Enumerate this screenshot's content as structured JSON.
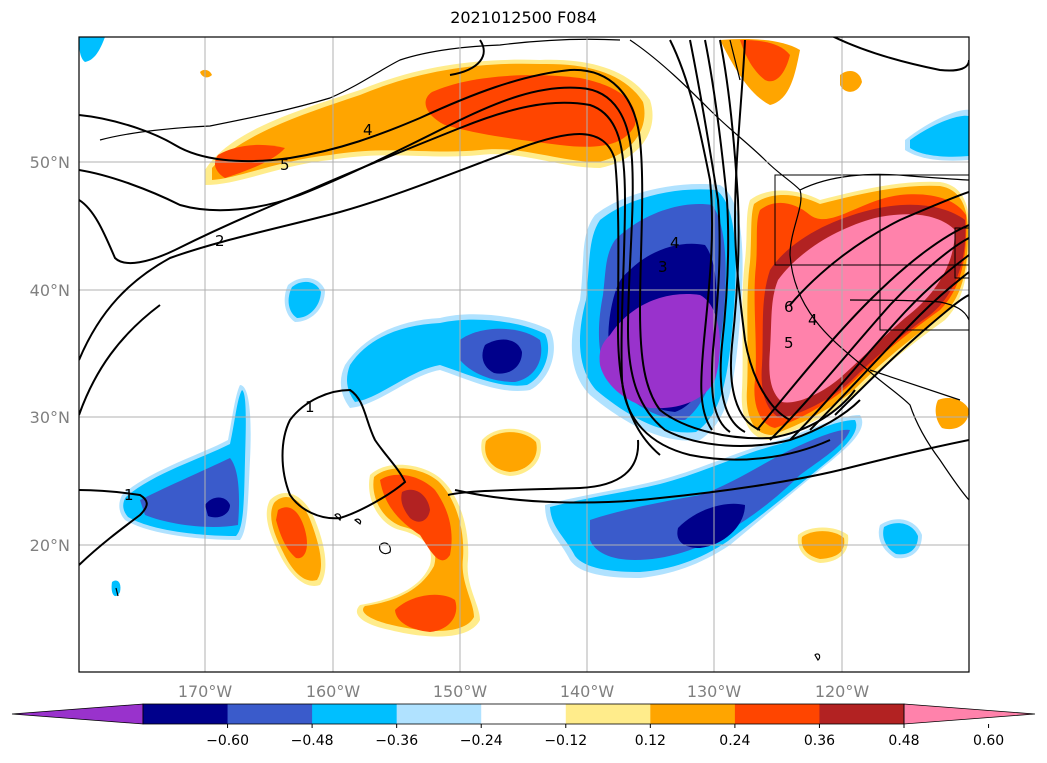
{
  "title": "2021012500 F084",
  "map": {
    "lat_labels": [
      "50°N",
      "40°N",
      "30°N",
      "20°N"
    ],
    "lon_labels": [
      "170°W",
      "160°W",
      "150°W",
      "140°W",
      "130°W",
      "120°W"
    ],
    "contour_labels": [
      "4",
      "5",
      "2",
      "1",
      "1",
      "4",
      "3",
      "6",
      "5",
      "4"
    ]
  },
  "colorbar": {
    "colors": [
      "#9932CC",
      "#00008B",
      "#3A5BCB",
      "#00BFFF",
      "#B0E2FF",
      "#FFFFFF",
      "#FFEC8B",
      "#FFA500",
      "#FF4500",
      "#B22222",
      "#FF82AB"
    ],
    "tick_labels": [
      "−0.60",
      "−0.48",
      "−0.36",
      "−0.24",
      "−0.12",
      "0.12",
      "0.24",
      "0.36",
      "0.48",
      "0.60"
    ]
  }
}
